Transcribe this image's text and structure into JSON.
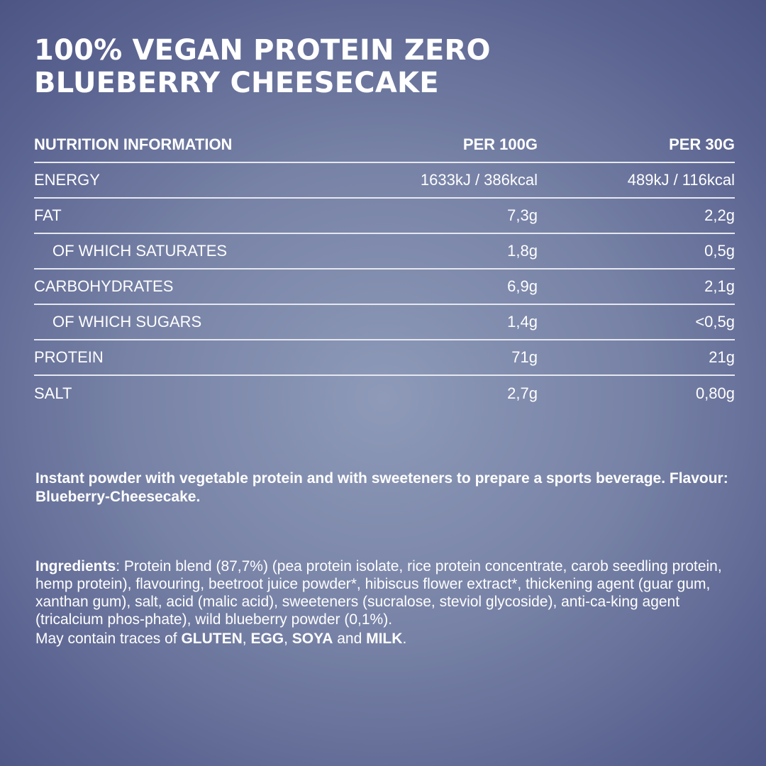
{
  "title": {
    "line1": "100% VEGAN PROTEIN ZERO",
    "line2": "BLUEBERRY CHEESECAKE"
  },
  "nutrition": {
    "header": {
      "label": "NUTRITION INFORMATION",
      "per100": "PER 100G",
      "per30": "PER 30G"
    },
    "rows": [
      {
        "label": "ENERGY",
        "per100": "1633kJ / 386kcal",
        "per30": "489kJ / 116kcal"
      },
      {
        "label": "FAT",
        "per100": "7,3g",
        "per30": "2,2g"
      },
      {
        "label": "OF WHICH SATURATES",
        "per100": "1,8g",
        "per30": "0,5g"
      },
      {
        "label": "CARBOHYDRATES",
        "per100": "6,9g",
        "per30": "2,1g"
      },
      {
        "label": "OF WHICH SUGARS",
        "per100": "1,4g",
        "per30": "<0,5g"
      },
      {
        "label": "PROTEIN",
        "per100": "71g",
        "per30": "21g"
      },
      {
        "label": "SALT",
        "per100": "2,7g",
        "per30": "0,80g"
      }
    ]
  },
  "description": "Instant powder with vegetable protein and with sweeteners to prepare a sports beverage. Flavour: Blueberry-Cheesecake.",
  "ingredients": {
    "label": "Ingredients",
    "text": ": Protein blend (87,7%) (pea protein isolate, rice protein concentrate, carob seedling protein, hemp protein), flavouring, beetroot juice powder*, hibiscus flower extract*, thickening agent (guar gum, xanthan gum), salt, acid (malic acid), sweeteners (sucralose, steviol glycoside), anti-ca-king agent (tricalcium phos-phate), wild blueberry powder (0,1%)."
  },
  "allergens": {
    "prefix": "May contain traces of ",
    "a1": "GLUTEN",
    "sep1": ", ",
    "a2": "EGG",
    "sep2": ", ",
    "a3": "SOYA",
    "sep3": " and ",
    "a4": "MILK",
    "suffix": "."
  }
}
